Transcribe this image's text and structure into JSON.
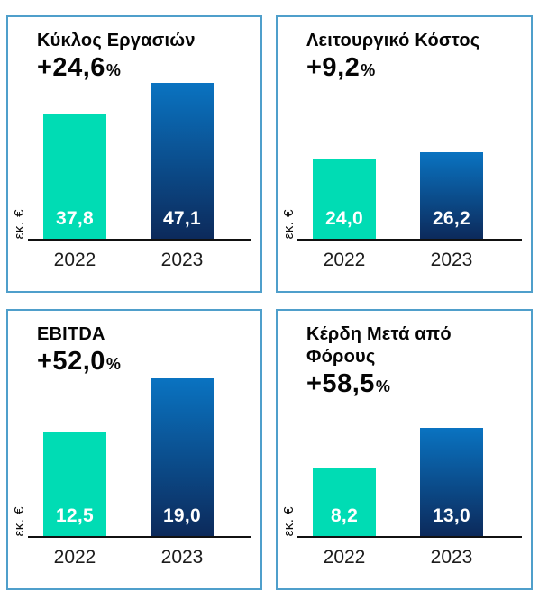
{
  "colors": {
    "panel_border": "#4f9fcb",
    "teal": "#00dcb4",
    "blue_top": "#0a73c1",
    "blue_bottom": "#0c2a5b",
    "axis": "#111111",
    "value_text": "#ffffff",
    "title_text": "#050505"
  },
  "chart_data": [
    {
      "type": "bar",
      "title": "Κύκλος Εργασιών",
      "delta": "+24,6",
      "percent_sign": "%",
      "unit": "εκ. €",
      "categories": [
        "2022",
        "2023"
      ],
      "values": [
        37.8,
        47.1
      ],
      "value_labels": [
        "37,8",
        "47,1"
      ],
      "ylim": [
        0,
        49
      ],
      "grid": false,
      "legend": "none"
    },
    {
      "type": "bar",
      "title": "Λειτουργικό Κόστος",
      "delta": "+9,2",
      "percent_sign": "%",
      "unit": "εκ. €",
      "categories": [
        "2022",
        "2023"
      ],
      "values": [
        24.0,
        26.2
      ],
      "value_labels": [
        "24,0",
        "26,2"
      ],
      "ylim": [
        0,
        49
      ],
      "grid": false,
      "legend": "none"
    },
    {
      "type": "bar",
      "title": "EBITDA",
      "delta": "+52,0",
      "percent_sign": "%",
      "unit": "εκ. €",
      "categories": [
        "2022",
        "2023"
      ],
      "values": [
        12.5,
        19.0
      ],
      "value_labels": [
        "12,5",
        "19,0"
      ],
      "ylim": [
        0,
        19.5
      ],
      "grid": false,
      "legend": "none"
    },
    {
      "type": "bar",
      "title": "Κέρδη Μετά από Φόρους",
      "delta": "+58,5",
      "percent_sign": "%",
      "unit": "εκ. €",
      "categories": [
        "2022",
        "2023"
      ],
      "values": [
        8.2,
        13.0
      ],
      "value_labels": [
        "8,2",
        "13,0"
      ],
      "ylim": [
        0,
        19.5
      ],
      "grid": false,
      "legend": "none"
    }
  ]
}
